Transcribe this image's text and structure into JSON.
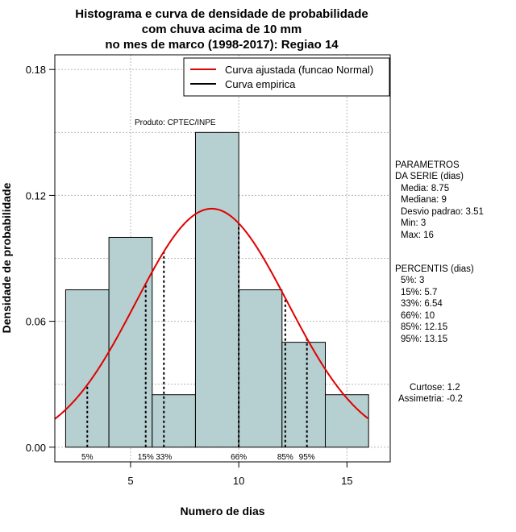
{
  "chart_data": {
    "type": "bar",
    "title_lines": [
      "Histograma e curva de densidade de probabilidade",
      "com chuva acima de 10 mm",
      "no mes de marco (1998-2017): Regiao 14"
    ],
    "xlabel": "Numero de dias",
    "ylabel": "Densidade de probabilidade",
    "xlim": [
      1.5,
      17
    ],
    "ylim": [
      -0.007,
      0.187
    ],
    "x_ticks": [
      5,
      10,
      15
    ],
    "y_ticks": [
      0.0,
      0.06,
      0.12,
      0.18
    ],
    "y_tick_labels": [
      "0.00",
      "0.06",
      "0.12",
      "0.18"
    ],
    "grid": true,
    "bar_color": "#b6cfd0",
    "histogram": {
      "bin_edges": [
        2,
        4,
        6,
        8,
        10,
        12,
        14,
        16
      ],
      "values": [
        0.075,
        0.1,
        0.025,
        0.15,
        0.075,
        0.05,
        0.025
      ]
    },
    "normal_curve": {
      "mean": 8.75,
      "sd": 3.51,
      "color": "#e00000"
    },
    "percentile_lines": [
      {
        "label": "5%",
        "x": 3
      },
      {
        "label": "15%",
        "x": 5.7
      },
      {
        "label": "33%",
        "x": 6.54
      },
      {
        "label": "66%",
        "x": 10
      },
      {
        "label": "85%",
        "x": 12.15
      },
      {
        "label": "95%",
        "x": 13.15
      }
    ],
    "legend": {
      "position": "top-right",
      "entries": [
        {
          "label": "Curva ajustada (funcao Normal)",
          "color": "#e00000"
        },
        {
          "label": "Curva empirica",
          "color": "#000000"
        }
      ]
    },
    "annotation": "Produto: CPTEC/INPE"
  },
  "side_panel": {
    "parametros_lines": [
      "PARAMETROS",
      "DA SERIE (dias)",
      "Media: 8.75",
      "Mediana: 9",
      "Desvio padrao: 3.51",
      "Min: 3",
      "Max: 16"
    ],
    "percentis_lines": [
      "PERCENTIS (dias)",
      "5%: 3",
      "15%: 5.7",
      "33%: 6.54",
      "66%: 10",
      "85%: 12.15",
      "95%: 13.15"
    ],
    "shape_lines": [
      "Curtose: 1.2",
      "Assimetria: -0.2"
    ]
  }
}
